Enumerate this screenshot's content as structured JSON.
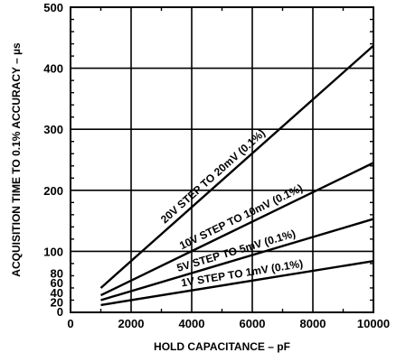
{
  "chart_data": {
    "type": "line",
    "title": "",
    "xlabel": "HOLD CAPACITANCE – pF",
    "ylabel": "ACQUISITION TIME TO 0.1% ACCURACY – µs",
    "xlim": [
      0,
      10000
    ],
    "ylim": [
      0,
      500
    ],
    "x_ticks": [
      "0",
      "2000",
      "4000",
      "6000",
      "8000",
      "10000"
    ],
    "x_tick_values": [
      0,
      2000,
      4000,
      6000,
      8000,
      10000
    ],
    "y_ticks": [
      "0",
      "20",
      "40",
      "60",
      "80",
      "100",
      "200",
      "300",
      "400",
      "500"
    ],
    "y_tick_values": [
      0,
      20,
      40,
      60,
      80,
      100,
      200,
      300,
      400,
      500
    ],
    "grid": true,
    "series": [
      {
        "label": "20V STEP TO 20mV (0.1%)",
        "x": [
          1000,
          10000
        ],
        "y": [
          40,
          437
        ]
      },
      {
        "label": "10V STEP TO 10mV (0.1%)",
        "x": [
          1000,
          10000
        ],
        "y": [
          28,
          245
        ]
      },
      {
        "label": "5V STEP TO 5mV (0.1%)",
        "x": [
          1000,
          10000
        ],
        "y": [
          20,
          153
        ]
      },
      {
        "label": "1V STEP TO 1mV (0.1%)",
        "x": [
          1000,
          10000
        ],
        "y": [
          12,
          84
        ]
      }
    ]
  },
  "colors": {
    "line": "#000000",
    "background": "#ffffff"
  }
}
